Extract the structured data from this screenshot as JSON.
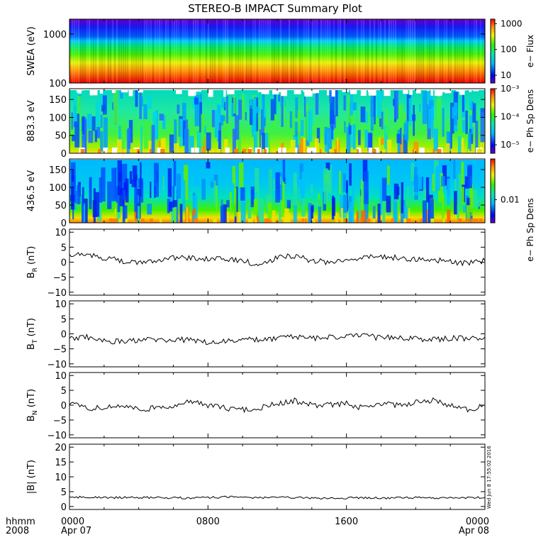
{
  "title": "STEREO-B IMPACT Summary Plot",
  "footer": {
    "hhmm": "hhmm",
    "year": "2008",
    "x_ticks": [
      {
        "hours": 0,
        "top": "0000",
        "bottom": "Apr 07"
      },
      {
        "hours": 8,
        "top": "0800",
        "bottom": ""
      },
      {
        "hours": 16,
        "top": "1600",
        "bottom": ""
      },
      {
        "hours": 24,
        "top": "0000",
        "bottom": "Apr 08"
      }
    ]
  },
  "timestamp": "Wed Jun  8 17:55:02 2016",
  "colors": {
    "line": "#000000",
    "frame": "#000000",
    "background": "#ffffff"
  },
  "chart_data": [
    {
      "type": "heatmap",
      "ylabel": "SWEA (eV)",
      "y_scale": "log",
      "ylim": [
        100,
        2000
      ],
      "yticks": [
        {
          "v": 100,
          "label": "100"
        },
        {
          "v": 1000,
          "label": "1000"
        }
      ],
      "colorbar": {
        "label": "e− Flux",
        "scale": "log",
        "range": [
          5,
          1500
        ],
        "ticks": [
          {
            "v": 10,
            "label": "10"
          },
          {
            "v": 100,
            "label": "100"
          },
          {
            "v": 1000,
            "label": "1000"
          }
        ]
      },
      "description_bands": [
        {
          "energy_eV": 1800,
          "level": "low (blue)"
        },
        {
          "energy_eV": 800,
          "level": "medium (cyan)"
        },
        {
          "energy_eV": 400,
          "level": "high (green-yellow)"
        },
        {
          "energy_eV": 150,
          "level": "very high (red)"
        }
      ]
    },
    {
      "type": "heatmap",
      "ylabel": "883.3 eV",
      "ylim": [
        0,
        180
      ],
      "yticks": [
        {
          "v": 0,
          "label": "0"
        },
        {
          "v": 50,
          "label": "50"
        },
        {
          "v": 100,
          "label": "100"
        },
        {
          "v": 150,
          "label": "150"
        }
      ],
      "colorbar": {
        "label": "e− Ph Sp Dens",
        "scale": "log",
        "range": [
          5e-06,
          0.001
        ],
        "ticks": [
          {
            "v": 1e-05,
            "label": "10⁻⁵"
          },
          {
            "v": 0.0001,
            "label": "10⁻⁴"
          },
          {
            "v": 0.001,
            "label": "10⁻³"
          }
        ]
      }
    },
    {
      "type": "heatmap",
      "ylabel": "436.5 eV",
      "ylim": [
        0,
        180
      ],
      "yticks": [
        {
          "v": 0,
          "label": "0"
        },
        {
          "v": 50,
          "label": "50"
        },
        {
          "v": 100,
          "label": "100"
        },
        {
          "v": 150,
          "label": "150"
        }
      ],
      "colorbar": {
        "label": "e− Ph Sp Dens",
        "scale": "log",
        "range": [
          0.004,
          0.05
        ],
        "ticks": [
          {
            "v": 0.01,
            "label": "0.01"
          }
        ]
      }
    },
    {
      "type": "line",
      "ylabel_main": "B",
      "ylabel_sub": "R",
      "ylabel_unit": " (nT)",
      "ylim": [
        -11,
        11
      ],
      "yticks": [
        {
          "v": -10,
          "label": "−10"
        },
        {
          "v": -5,
          "label": "−5"
        },
        {
          "v": 0,
          "label": "0"
        },
        {
          "v": 5,
          "label": "5"
        },
        {
          "v": 10,
          "label": "10"
        }
      ],
      "xlim_hours": [
        0,
        24
      ],
      "series": [
        {
          "x_hours": [
            0,
            1,
            2,
            3,
            4,
            5,
            6,
            7,
            8,
            9,
            10,
            11,
            12,
            13,
            14,
            15,
            16,
            17,
            18,
            19,
            20,
            21,
            22,
            23,
            24
          ],
          "values": [
            2,
            2.5,
            1.5,
            0.5,
            -0.5,
            0.8,
            1.5,
            1.5,
            1,
            1,
            0.5,
            -1,
            1.5,
            2.2,
            0.5,
            0,
            1,
            1.5,
            1.8,
            1.5,
            1,
            0.8,
            0.2,
            -0.5,
            0.5
          ]
        }
      ]
    },
    {
      "type": "line",
      "ylabel_main": "B",
      "ylabel_sub": "T",
      "ylabel_unit": " (nT)",
      "ylim": [
        -11,
        11
      ],
      "yticks": [
        {
          "v": -10,
          "label": "−10"
        },
        {
          "v": -5,
          "label": "−5"
        },
        {
          "v": 0,
          "label": "0"
        },
        {
          "v": 5,
          "label": "5"
        },
        {
          "v": 10,
          "label": "10"
        }
      ],
      "xlim_hours": [
        0,
        24
      ],
      "series": [
        {
          "x_hours": [
            0,
            1,
            2,
            3,
            4,
            5,
            6,
            7,
            8,
            9,
            10,
            11,
            12,
            13,
            14,
            15,
            16,
            17,
            18,
            19,
            20,
            21,
            22,
            23,
            24
          ],
          "values": [
            -1.5,
            -1,
            -2.5,
            -2.5,
            -2,
            -2,
            -2,
            -2,
            -3,
            -2.5,
            -2,
            -2,
            -1.5,
            -1,
            -1.5,
            -1,
            -1,
            -0.5,
            -1.5,
            -1,
            -1.5,
            -2,
            -1.5,
            -1.5,
            -1
          ]
        }
      ]
    },
    {
      "type": "line",
      "ylabel_main": "B",
      "ylabel_sub": "N",
      "ylabel_unit": " (nT)",
      "ylim": [
        -11,
        11
      ],
      "yticks": [
        {
          "v": -10,
          "label": "−10"
        },
        {
          "v": -5,
          "label": "−5"
        },
        {
          "v": 0,
          "label": "0"
        },
        {
          "v": 5,
          "label": "5"
        },
        {
          "v": 10,
          "label": "10"
        }
      ],
      "xlim_hours": [
        0,
        24
      ],
      "series": [
        {
          "x_hours": [
            0,
            1,
            2,
            3,
            4,
            5,
            6,
            7,
            8,
            9,
            10,
            11,
            12,
            13,
            14,
            15,
            16,
            17,
            18,
            19,
            20,
            21,
            22,
            23,
            24
          ],
          "values": [
            0.5,
            -1,
            -1,
            0,
            -1.5,
            -1,
            0,
            1,
            0,
            -1,
            -1.5,
            -1,
            0.5,
            1.5,
            0,
            0,
            0.5,
            -1,
            0.5,
            0,
            1,
            1.5,
            0,
            -1.5,
            0
          ]
        }
      ]
    },
    {
      "type": "line",
      "ylabel_main": "|B|",
      "ylabel_sub": "",
      "ylabel_unit": " (nT)",
      "ylim": [
        -1,
        21
      ],
      "yticks": [
        {
          "v": 0,
          "label": "0"
        },
        {
          "v": 5,
          "label": "5"
        },
        {
          "v": 10,
          "label": "10"
        },
        {
          "v": 15,
          "label": "15"
        },
        {
          "v": 20,
          "label": "20"
        }
      ],
      "xlim_hours": [
        0,
        24
      ],
      "series": [
        {
          "x_hours": [
            0,
            1,
            2,
            3,
            4,
            5,
            6,
            7,
            8,
            9,
            10,
            11,
            12,
            13,
            14,
            15,
            16,
            17,
            18,
            19,
            20,
            21,
            22,
            23,
            24
          ],
          "values": [
            3,
            3.2,
            3,
            3,
            3,
            3,
            2.9,
            2.9,
            3,
            3.2,
            3.1,
            3,
            3,
            3,
            2.8,
            2.8,
            2.8,
            3,
            2.8,
            2.9,
            3,
            2.8,
            2.9,
            3,
            3
          ]
        }
      ]
    }
  ]
}
